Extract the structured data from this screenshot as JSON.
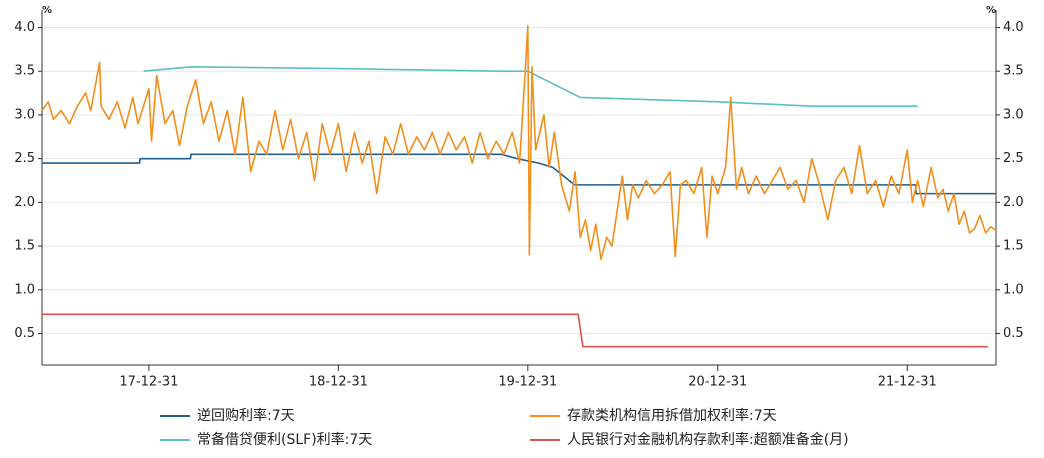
{
  "chart_data": {
    "type": "line",
    "ylabel": "%",
    "y2label": "%",
    "xlim": [
      "17-06-08",
      "22-06-20"
    ],
    "xticks": [
      "17-12-31",
      "18-12-31",
      "19-12-31",
      "20-12-31",
      "21-12-31"
    ],
    "ylim": [
      0.14,
      4.2
    ],
    "yticks": [
      0.5,
      {
        "value": 1,
        "label": "1.0"
      },
      1.5,
      {
        "value": 2,
        "label": "2.0"
      },
      2.5,
      {
        "value": 3,
        "label": "3.0"
      },
      3.5,
      {
        "value": 4,
        "label": "4.0"
      }
    ],
    "y2lim": [
      0.14,
      4.2
    ],
    "y2ticks": [
      0.5,
      {
        "value": 1,
        "label": "1.0"
      },
      1.5,
      {
        "value": 2,
        "label": "2.0"
      },
      2.5,
      {
        "value": 3,
        "label": "3.0"
      },
      3.5,
      {
        "value": 4,
        "label": "4.0"
      }
    ],
    "grid": true,
    "series": [
      {
        "name": "逆回购利率:7天",
        "color": "#1f5f8f",
        "x": [
          "17-06-08",
          "17-12-13",
          "17-12-14",
          "18-03-21",
          "18-03-22",
          "19-11-10",
          "19-12-10",
          "20-01-20",
          "20-02-17",
          "20-03-30",
          "22-01-16",
          "22-01-17",
          "22-06-20"
        ],
        "values": [
          2.45,
          2.45,
          2.5,
          2.5,
          2.55,
          2.55,
          2.5,
          2.45,
          2.4,
          2.2,
          2.2,
          2.1,
          2.1
        ]
      },
      {
        "name": "存款类机构信用拆借加权利率:7天",
        "color": "#f28e1c",
        "x": [
          "17-06-08",
          "17-06-20",
          "17-06-30",
          "17-07-15",
          "17-07-31",
          "17-08-15",
          "17-08-31",
          "17-09-10",
          "17-09-27",
          "17-09-30",
          "17-10-15",
          "17-10-31",
          "17-11-15",
          "17-11-30",
          "17-12-10",
          "17-12-31",
          "18-01-05",
          "18-01-15",
          "18-01-31",
          "18-02-15",
          "18-02-28",
          "18-03-15",
          "18-03-31",
          "18-04-15",
          "18-04-30",
          "18-05-15",
          "18-05-31",
          "18-06-15",
          "18-06-30",
          "18-07-15",
          "18-07-31",
          "18-08-15",
          "18-08-31",
          "18-09-15",
          "18-09-30",
          "18-10-15",
          "18-10-31",
          "18-11-15",
          "18-11-30",
          "18-12-15",
          "18-12-31",
          "19-01-15",
          "19-01-31",
          "19-02-15",
          "19-02-28",
          "19-03-15",
          "19-03-31",
          "19-04-15",
          "19-04-30",
          "19-05-15",
          "19-05-31",
          "19-06-15",
          "19-06-30",
          "19-07-15",
          "19-07-31",
          "19-08-15",
          "19-08-31",
          "19-09-15",
          "19-09-30",
          "19-10-15",
          "19-10-31",
          "19-11-15",
          "19-12-01",
          "19-12-15",
          "19-12-25",
          "19-12-31",
          "20-01-03",
          "20-01-08",
          "20-01-15",
          "20-01-31",
          "20-02-10",
          "20-02-20",
          "20-03-05",
          "20-03-20",
          "20-03-31",
          "20-04-10",
          "20-04-20",
          "20-04-30",
          "20-05-10",
          "20-05-20",
          "20-05-31",
          "20-06-10",
          "20-06-20",
          "20-06-30",
          "20-07-10",
          "20-07-20",
          "20-07-31",
          "20-08-15",
          "20-08-31",
          "20-09-15",
          "20-09-30",
          "20-10-10",
          "20-10-20",
          "20-10-31",
          "20-11-15",
          "20-11-30",
          "20-12-10",
          "20-12-20",
          "20-12-31",
          "21-01-15",
          "21-01-25",
          "21-02-05",
          "21-02-15",
          "21-02-28",
          "21-03-15",
          "21-03-31",
          "21-04-15",
          "21-04-30",
          "21-05-15",
          "21-05-31",
          "21-06-15",
          "21-06-30",
          "21-07-15",
          "21-07-31",
          "21-08-15",
          "21-08-31",
          "21-09-15",
          "21-09-30",
          "21-10-15",
          "21-10-31",
          "21-11-15",
          "21-11-30",
          "21-12-15",
          "21-12-31",
          "22-01-10",
          "22-01-20",
          "22-01-31",
          "22-02-15",
          "22-02-28",
          "22-03-10",
          "22-03-20",
          "22-03-31",
          "22-04-10",
          "22-04-20",
          "22-04-30",
          "22-05-10",
          "22-05-20",
          "22-05-31",
          "22-06-10",
          "22-06-20"
        ],
        "values": [
          3.05,
          3.15,
          2.95,
          3.05,
          2.9,
          3.1,
          3.25,
          3.05,
          3.6,
          3.1,
          2.95,
          3.15,
          2.85,
          3.2,
          2.9,
          3.3,
          2.7,
          3.45,
          2.9,
          3.05,
          2.65,
          3.1,
          3.4,
          2.9,
          3.15,
          2.7,
          3.05,
          2.55,
          3.2,
          2.35,
          2.7,
          2.55,
          3.05,
          2.6,
          2.95,
          2.5,
          2.8,
          2.25,
          2.9,
          2.55,
          2.9,
          2.35,
          2.8,
          2.45,
          2.7,
          2.1,
          2.75,
          2.55,
          2.9,
          2.55,
          2.75,
          2.6,
          2.8,
          2.55,
          2.8,
          2.6,
          2.75,
          2.45,
          2.8,
          2.5,
          2.7,
          2.55,
          2.8,
          2.45,
          3.4,
          4.02,
          1.4,
          3.55,
          2.6,
          3.0,
          2.4,
          2.8,
          2.2,
          1.9,
          2.35,
          1.6,
          1.8,
          1.45,
          1.75,
          1.35,
          1.6,
          1.5,
          1.9,
          2.3,
          1.8,
          2.2,
          2.05,
          2.25,
          2.1,
          2.2,
          2.35,
          1.38,
          2.2,
          2.25,
          2.1,
          2.4,
          1.6,
          2.3,
          2.1,
          2.4,
          3.2,
          2.15,
          2.4,
          2.1,
          2.3,
          2.1,
          2.25,
          2.4,
          2.15,
          2.25,
          2.0,
          2.5,
          2.2,
          1.8,
          2.25,
          2.4,
          2.1,
          2.65,
          2.1,
          2.25,
          1.95,
          2.3,
          2.1,
          2.6,
          2.0,
          2.25,
          1.95,
          2.4,
          2.05,
          2.15,
          1.9,
          2.1,
          1.75,
          1.9,
          1.65,
          1.7,
          1.85,
          1.65,
          1.72,
          1.68
        ]
      },
      {
        "name": "常备借贷便利(SLF)利率:7天",
        "color": "#5bc0c0",
        "x": [
          "17-12-21",
          "18-03-22",
          "18-12-31",
          "19-11-10",
          "19-12-31",
          "20-04-10",
          "20-12-31",
          "21-07-01",
          "22-01-20"
        ],
        "values": [
          3.5,
          3.55,
          3.53,
          3.5,
          3.5,
          3.2,
          3.15,
          3.1,
          3.1
        ]
      },
      {
        "name": "人民银行对金融机构存款利率:超额准备金(月)",
        "color": "#d9534f",
        "x": [
          "17-06-08",
          "20-04-06",
          "20-04-15",
          "22-06-05"
        ],
        "values": [
          0.72,
          0.72,
          0.35,
          0.35
        ]
      }
    ]
  }
}
